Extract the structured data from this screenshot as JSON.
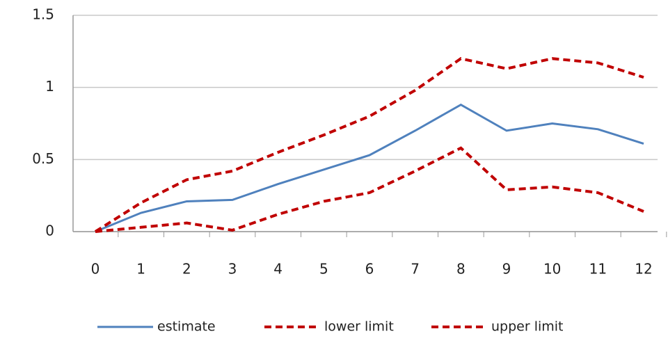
{
  "chart_data": {
    "type": "line",
    "categories": [
      "0",
      "1",
      "2",
      "3",
      "4",
      "5",
      "6",
      "7",
      "8",
      "9",
      "10",
      "11",
      "12"
    ],
    "series": [
      {
        "name": "estimate",
        "color": "#4f81bd",
        "dash": false,
        "values": [
          0,
          0.13,
          0.21,
          0.22,
          0.33,
          0.43,
          0.53,
          0.7,
          0.88,
          0.7,
          0.75,
          0.71,
          0.61
        ]
      },
      {
        "name": "lower limit",
        "color": "#c00000",
        "dash": true,
        "values": [
          0,
          0.03,
          0.06,
          0.01,
          0.12,
          0.21,
          0.27,
          0.42,
          0.58,
          0.29,
          0.31,
          0.27,
          0.14
        ]
      },
      {
        "name": "upper limit",
        "color": "#c00000",
        "dash": true,
        "values": [
          0,
          0.2,
          0.36,
          0.42,
          0.55,
          0.67,
          0.8,
          0.98,
          1.2,
          1.13,
          1.2,
          1.17,
          1.07
        ]
      }
    ],
    "ylim": [
      0,
      1.5
    ],
    "yticks": [
      0,
      0.5,
      1,
      1.5
    ],
    "grid": true
  }
}
